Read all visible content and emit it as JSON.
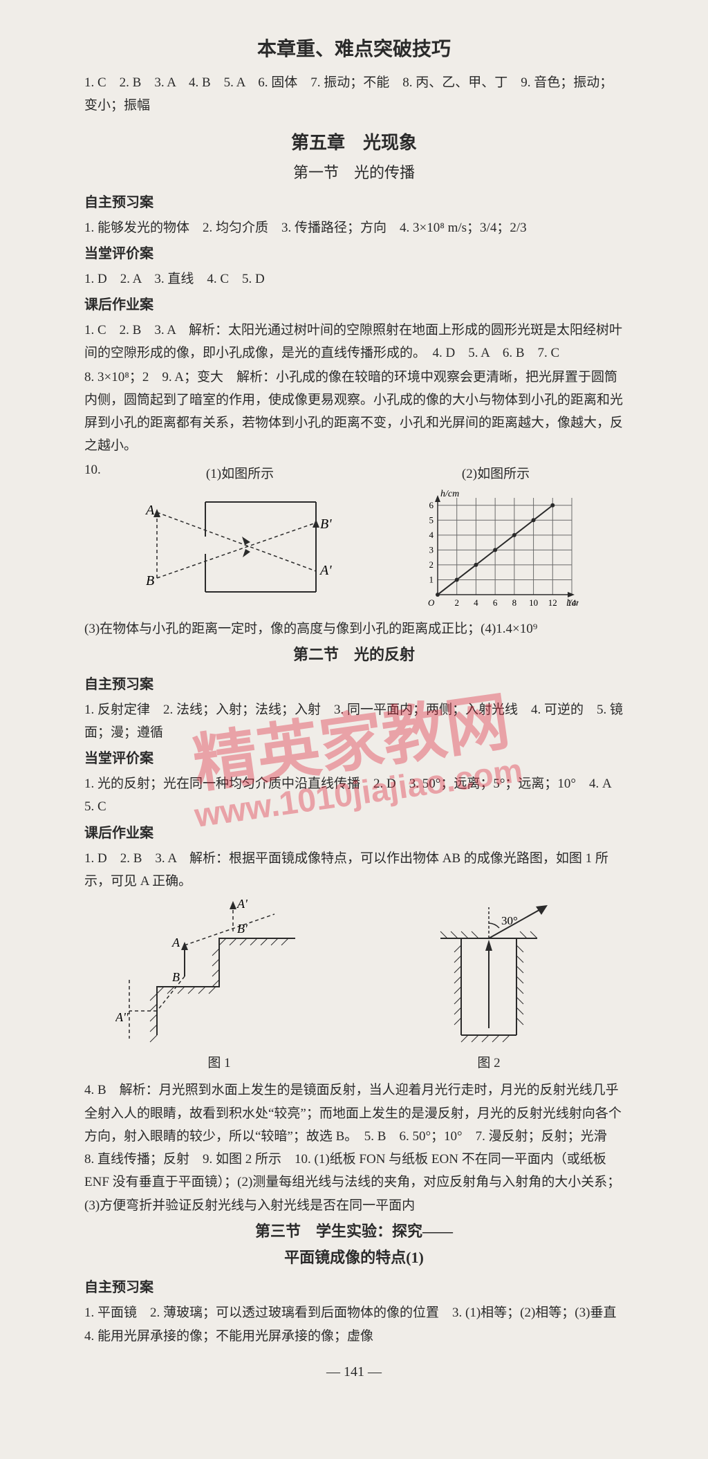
{
  "page_number": "141",
  "watermark": {
    "line1": "精英家教网",
    "line2": "www.1010jiajiao.com"
  },
  "top_block": {
    "title": "本章重、难点突破技巧",
    "answers": "1. C　2. B　3. A　4. B　5. A　6. 固体　7. 振动；不能　8. 丙、乙、甲、丁　9. 音色；振动；变小；振幅"
  },
  "chapter5": {
    "title": "第五章　光现象",
    "section1": {
      "title": "第一节　光的传播",
      "preview_heading": "自主预习案",
      "preview": "1. 能够发光的物体　2. 均匀介质　3. 传播路径；方向　4. 3×10⁸ m/s；3/4；2/3",
      "class_heading": "当堂评价案",
      "class": "1. D　2. A　3. 直线　4. C　5. D",
      "homework_heading": "课后作业案",
      "homework_p1": "1. C　2. B　3. A　解析：太阳光通过树叶间的空隙照射在地面上形成的圆形光斑是太阳经树叶间的空隙形成的像，即小孔成像，是光的直线传播形成的。　4. D　5. A　6. B　7. C",
      "homework_p2": "8. 3×10⁸；2　9. A；变大　解析：小孔成的像在较暗的环境中观察会更清晰，把光屏置于圆筒内侧，圆筒起到了暗室的作用，使成像更易观察。小孔成的像的大小与物体到小孔的距离和光屏到小孔的距离都有关系，若物体到小孔的距离不变，小孔和光屏间的距离越大，像越大，反之越小。",
      "q10_label": "10.",
      "fig1_label": "(1)如图所示",
      "fig2_label": "(2)如图所示",
      "after_figs": "(3)在物体与小孔的距离一定时，像的高度与像到小孔的距离成正比；(4)1.4×10⁹",
      "chart2": {
        "type": "line",
        "xlabel": "l/cm",
        "ylabel": "h/cm",
        "xlim": [
          0,
          14
        ],
        "ylim": [
          0,
          6.5
        ],
        "xticks": [
          0,
          2,
          4,
          6,
          8,
          10,
          12,
          14
        ],
        "yticks": [
          0,
          1,
          2,
          3,
          4,
          5,
          6
        ],
        "grid_color": "#6a6a6a",
        "background_color": "#f0ede8",
        "line_color": "#2a2a2a",
        "points": [
          [
            0,
            0
          ],
          [
            2,
            1
          ],
          [
            4,
            2
          ],
          [
            6,
            3
          ],
          [
            8,
            4
          ],
          [
            10,
            5
          ],
          [
            12,
            6
          ]
        ]
      },
      "diagram1": {
        "type": "ray-diagram",
        "labels": [
          "A",
          "B",
          "A'",
          "B'"
        ],
        "line_color": "#2a2a2a",
        "dash": "4 3"
      }
    },
    "section2": {
      "title": "第二节　光的反射",
      "preview_heading": "自主预习案",
      "preview": "1. 反射定律　2. 法线；入射；法线；入射　3. 同一平面内；两侧；入射光线　4. 可逆的　5. 镜面；漫；遵循",
      "class_heading": "当堂评价案",
      "class": "1. 光的反射；光在同一种均匀介质中沿直线传播　2. D　3. 50°；远离；5°；远离；10°　4. A　5. C",
      "homework_heading": "课后作业案",
      "homework_p1": "1. D　2. B　3. A　解析：根据平面镜成像特点，可以作出物体 AB 的成像光路图，如图 1 所示，可见 A 正确。",
      "fig1_cap": "图 1",
      "fig2_cap": "图 2",
      "diagram2a": {
        "type": "mirror-ray-diagram",
        "labels": [
          "A",
          "B",
          "A'",
          "B'",
          "A''"
        ],
        "line_color": "#2a2a2a",
        "hatch_color": "#2a2a2a"
      },
      "diagram2b": {
        "type": "reflection-diagram",
        "angle_label": "30°",
        "line_color": "#2a2a2a",
        "hatch_color": "#2a2a2a"
      },
      "homework_p2": "4. B　解析：月光照到水面上发生的是镜面反射，当人迎着月光行走时，月光的反射光线几乎全射入人的眼睛，故看到积水处“较亮”；而地面上发生的是漫反射，月光的反射光线射向各个方向，射入眼睛的较少，所以“较暗”；故选 B。　5. B　6. 50°；10°　7. 漫反射；反射；光滑　8. 直线传播；反射　9. 如图 2 所示　10. (1)纸板 FON 与纸板 EON 不在同一平面内（或纸板 ENF 没有垂直于平面镜）；(2)测量每组光线与法线的夹角，对应反射角与入射角的大小关系；(3)方便弯折并验证反射光线与入射光线是否在同一平面内"
    },
    "section3": {
      "title_line1": "第三节　学生实验：探究——",
      "title_line2": "平面镜成像的特点(1)",
      "preview_heading": "自主预习案",
      "preview": "1. 平面镜　2. 薄玻璃；可以透过玻璃看到后面物体的像的位置　3. (1)相等；(2)相等；(3)垂直",
      "preview2": "4. 能用光屏承接的像；不能用光屏承接的像；虚像"
    }
  }
}
